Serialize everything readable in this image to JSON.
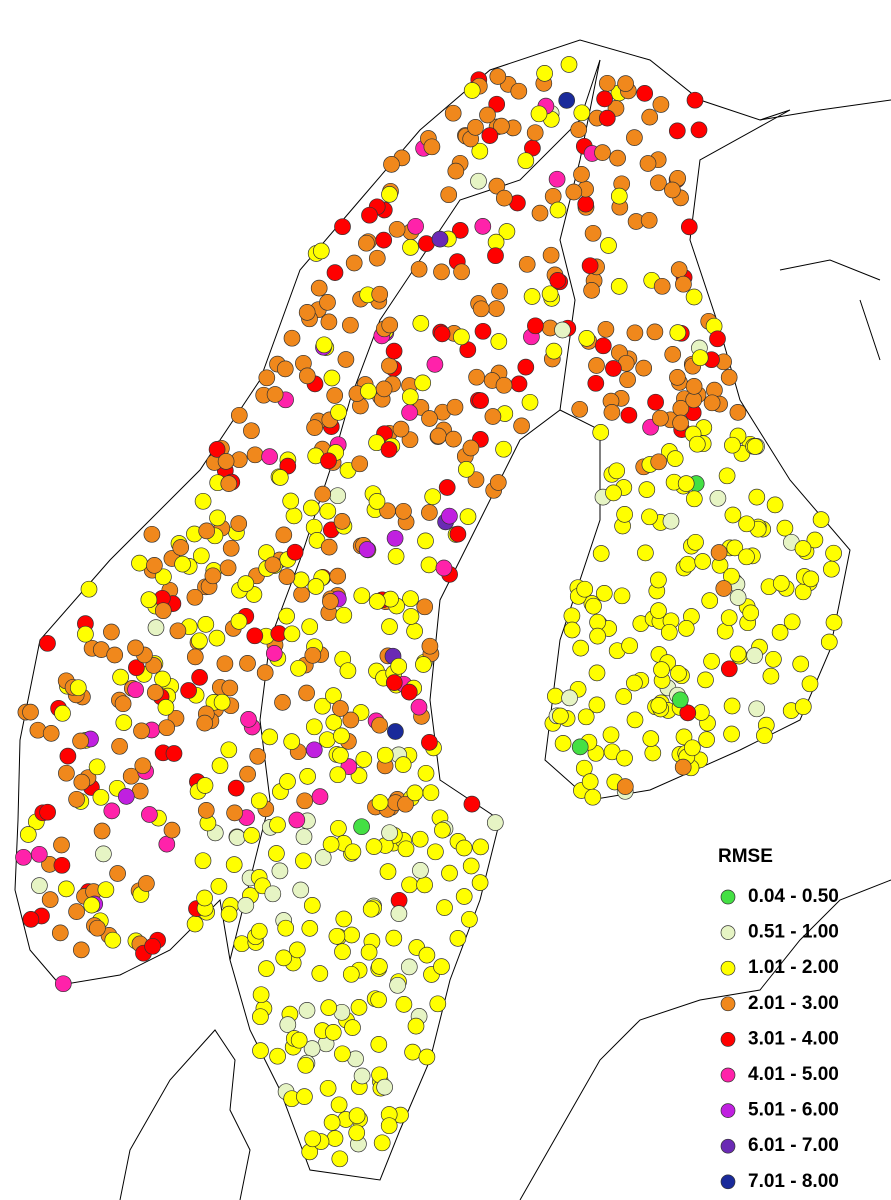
{
  "legend": {
    "title": "RMSE",
    "classes": [
      {
        "label": "0.04 - 0.50",
        "color": "#44e044"
      },
      {
        "label": "0.51 - 1.00",
        "color": "#e6f4c4"
      },
      {
        "label": "1.01 - 2.00",
        "color": "#ffff00"
      },
      {
        "label": "2.01 - 3.00",
        "color": "#f0881c"
      },
      {
        "label": "3.01 - 4.00",
        "color": "#ff0000"
      },
      {
        "label": "4.01 - 5.00",
        "color": "#ff22aa"
      },
      {
        "label": "5.01 - 6.00",
        "color": "#c020e0"
      },
      {
        "label": "6.01 - 7.00",
        "color": "#6a2ab4"
      },
      {
        "label": "7.01 - 8.00",
        "color": "#1a2a9a"
      }
    ]
  }
}
